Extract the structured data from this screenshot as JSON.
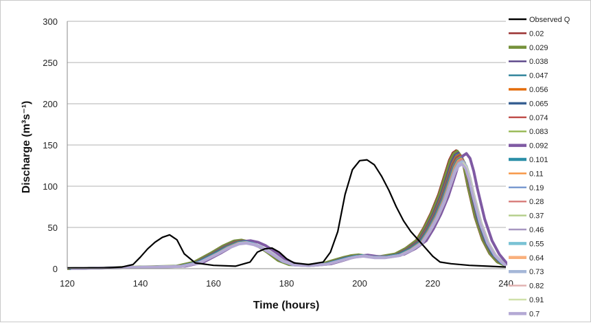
{
  "chart_data": {
    "type": "line",
    "xlabel": "Time (hours)",
    "ylabel": "Discharge (m³s⁻¹)",
    "xlim": [
      120,
      240
    ],
    "ylim": [
      0,
      300
    ],
    "xticks": [
      "120",
      "140",
      "160",
      "180",
      "200",
      "220",
      "240"
    ],
    "yticks": [
      "0",
      "50",
      "100",
      "150",
      "200",
      "250",
      "300"
    ],
    "grid": "horizontal",
    "legend": "right",
    "observed": {
      "name": "Observed Q",
      "color": "#000000",
      "x": [
        120,
        130,
        135,
        138,
        140,
        142,
        144,
        146,
        148,
        150,
        152,
        155,
        160,
        166,
        170,
        172,
        174,
        176,
        178,
        180,
        182,
        186,
        190,
        192,
        194,
        196,
        198,
        200,
        202,
        204,
        206,
        208,
        210,
        212,
        214,
        216,
        218,
        220,
        222,
        225,
        230,
        235,
        240
      ],
      "y": [
        1,
        1,
        2,
        5,
        14,
        24,
        32,
        38,
        41,
        35,
        18,
        7,
        4,
        3,
        8,
        20,
        24,
        25,
        20,
        12,
        7,
        5,
        8,
        20,
        45,
        90,
        120,
        131,
        132,
        126,
        112,
        95,
        75,
        58,
        45,
        35,
        25,
        15,
        8,
        6,
        4,
        3,
        2
      ]
    },
    "simulated": {
      "x": [
        120,
        150,
        155,
        160,
        163,
        166,
        168,
        170,
        172,
        175,
        178,
        181,
        185,
        190,
        193,
        196,
        198,
        200,
        203,
        206,
        210,
        213,
        216,
        218,
        220,
        222,
        224,
        225,
        226,
        227,
        228,
        229,
        230,
        232,
        234,
        236,
        238,
        240
      ],
      "y": [
        0,
        3,
        8,
        20,
        28,
        34,
        35,
        33,
        29,
        20,
        10,
        5,
        4,
        6,
        10,
        14,
        16,
        17,
        15,
        15,
        18,
        25,
        35,
        50,
        68,
        90,
        118,
        132,
        141,
        144,
        138,
        122,
        100,
        62,
        35,
        18,
        8,
        4
      ]
    },
    "series": [
      {
        "name": "0.02",
        "color": "#9a2f2f",
        "width": 2,
        "shift": -0.6,
        "scale": 1.0
      },
      {
        "name": "0.029",
        "color": "#76923c",
        "width": 4,
        "shift": -0.3,
        "scale": 0.99
      },
      {
        "name": "0.038",
        "color": "#5f4a8b",
        "width": 2,
        "shift": 0,
        "scale": 0.98
      },
      {
        "name": "0.047",
        "color": "#31859c",
        "width": 2,
        "shift": 0.2,
        "scale": 0.97
      },
      {
        "name": "0.056",
        "color": "#e46c0a",
        "width": 3,
        "shift": 0.3,
        "scale": 0.96
      },
      {
        "name": "0.065",
        "color": "#376092",
        "width": 3,
        "shift": 0.4,
        "scale": 0.95
      },
      {
        "name": "0.074",
        "color": "#c0504d",
        "width": 2,
        "shift": 0.5,
        "scale": 0.95
      },
      {
        "name": "0.083",
        "color": "#9bbb59",
        "width": 2,
        "shift": 0.6,
        "scale": 0.94
      },
      {
        "name": "0.092",
        "color": "#7f5aa3",
        "width": 4,
        "shift": 2.2,
        "scale": 0.97
      },
      {
        "name": "0.101",
        "color": "#2c8fa8",
        "width": 4,
        "shift": 0.7,
        "scale": 0.93
      },
      {
        "name": "0.11",
        "color": "#f79646",
        "width": 2,
        "shift": 0.8,
        "scale": 0.93
      },
      {
        "name": "0.19",
        "color": "#7b9bd1",
        "width": 2,
        "shift": 0.9,
        "scale": 0.92
      },
      {
        "name": "0.28",
        "color": "#d9807e",
        "width": 2,
        "shift": 1.0,
        "scale": 0.92
      },
      {
        "name": "0.37",
        "color": "#b6cf8d",
        "width": 2,
        "shift": 1.0,
        "scale": 0.91
      },
      {
        "name": "0.46",
        "color": "#a797c0",
        "width": 2,
        "shift": 1.1,
        "scale": 0.91
      },
      {
        "name": "0.55",
        "color": "#79c2d4",
        "width": 4,
        "shift": 1.1,
        "scale": 0.9
      },
      {
        "name": "0.64",
        "color": "#f9b07c",
        "width": 4,
        "shift": 1.2,
        "scale": 0.9
      },
      {
        "name": "0.73",
        "color": "#a5b7d8",
        "width": 4,
        "shift": 1.2,
        "scale": 0.9
      },
      {
        "name": "0.82",
        "color": "#e2b3b2",
        "width": 2,
        "shift": 1.3,
        "scale": 0.89
      },
      {
        "name": "0.91",
        "color": "#cfe0a9",
        "width": 2,
        "shift": 1.3,
        "scale": 0.89
      },
      {
        "name": "0.7",
        "color": "#b4a9d4",
        "width": 4,
        "shift": 1.0,
        "scale": 0.88
      }
    ]
  }
}
